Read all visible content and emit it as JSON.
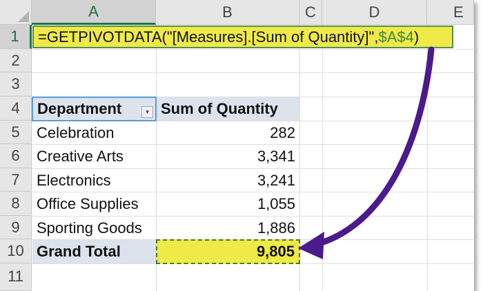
{
  "columns": [
    "A",
    "B",
    "C",
    "D",
    "E"
  ],
  "rows": [
    "1",
    "2",
    "3",
    "4",
    "5",
    "6",
    "7",
    "8",
    "9",
    "10",
    "11"
  ],
  "formula": {
    "text": "=GETPIVOTDATA(\"[Measures].[Sum of Quantity]\",",
    "ref": "$A$4",
    "close": ")"
  },
  "pivot": {
    "header_department": "Department",
    "header_sum": "Sum of Quantity",
    "rows": [
      {
        "department": "Celebration",
        "quantity": "282"
      },
      {
        "department": "Creative Arts",
        "quantity": "3,341"
      },
      {
        "department": "Electronics",
        "quantity": "3,241"
      },
      {
        "department": "Office Supplies",
        "quantity": "1,055"
      },
      {
        "department": "Sporting Goods",
        "quantity": "1,886"
      }
    ],
    "grand_total_label": "Grand Total",
    "grand_total_value": "9,805"
  },
  "colors": {
    "highlight_yellow": "#f0ea48",
    "excel_green": "#217346",
    "pivot_header_bg": "#dde3ec",
    "arrow_purple": "#4b1a8c"
  }
}
